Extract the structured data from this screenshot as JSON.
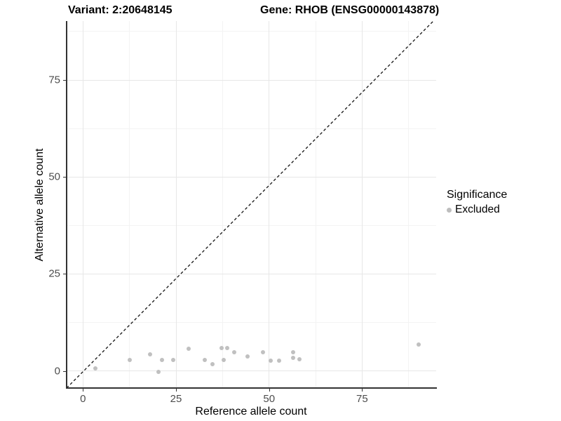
{
  "titles": {
    "left": "Variant: 2:20648145",
    "right": "Gene: RHOB (ENSG00000143878)"
  },
  "legend": {
    "title": "Significance",
    "items": [
      {
        "label": "Excluded",
        "color": "#bdbdbd"
      }
    ]
  },
  "colors": {
    "point": "#bdbdbd",
    "grid_major": "#e7e7e7",
    "grid_minor": "#f3f3f3",
    "axis_line": "#333333",
    "dashed_line": "#111111",
    "tick_label": "#4d4d4d"
  },
  "chart_data": {
    "type": "scatter",
    "title": "Variant: 2:20648145 — Gene: RHOB (ENSG00000143878)",
    "xlabel": "Reference allele count",
    "ylabel": "Alternative allele count",
    "xlim": [
      -4.4,
      94.9
    ],
    "ylim": [
      -4.4,
      90.2
    ],
    "x_major_ticks": [
      0,
      25,
      50,
      75
    ],
    "y_major_ticks": [
      0,
      25,
      50,
      75
    ],
    "x_minor_ticks": [
      12.5,
      37.5,
      62.5,
      87.5
    ],
    "y_minor_ticks": [
      12.5,
      37.5,
      62.5,
      87.5
    ],
    "grid": true,
    "legend_position": "right",
    "reference_line": {
      "type": "identity",
      "slope": 1,
      "intercept": 0,
      "linetype": "dashed"
    },
    "series": [
      {
        "name": "Excluded",
        "color": "#bdbdbd",
        "points": [
          [
            3.4,
            0.6
          ],
          [
            12.6,
            2.8
          ],
          [
            18.0,
            4.2
          ],
          [
            20.2,
            -0.3
          ],
          [
            21.3,
            2.8
          ],
          [
            24.3,
            2.8
          ],
          [
            28.4,
            5.7
          ],
          [
            32.8,
            2.8
          ],
          [
            34.7,
            1.7
          ],
          [
            37.3,
            5.9
          ],
          [
            38.7,
            5.9
          ],
          [
            37.8,
            2.8
          ],
          [
            40.6,
            4.8
          ],
          [
            44.3,
            3.7
          ],
          [
            48.3,
            4.8
          ],
          [
            50.4,
            2.7
          ],
          [
            52.7,
            2.7
          ],
          [
            56.4,
            4.9
          ],
          [
            56.4,
            3.3
          ],
          [
            58.1,
            3.1
          ],
          [
            90.2,
            6.8
          ]
        ]
      }
    ]
  }
}
